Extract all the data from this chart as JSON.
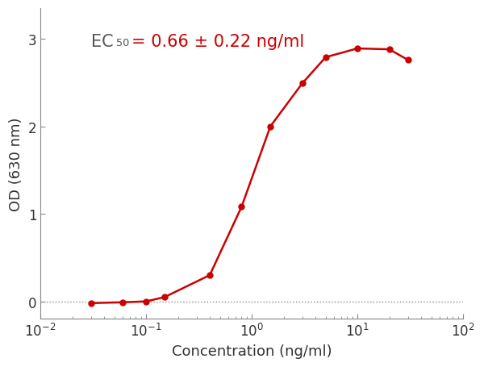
{
  "x": [
    0.03,
    0.06,
    0.1,
    0.15,
    0.4,
    0.8,
    1.5,
    3.0,
    5.0,
    10.0,
    20.0,
    30.0
  ],
  "y": [
    -0.02,
    -0.01,
    0.0,
    0.05,
    0.3,
    1.08,
    2.0,
    2.49,
    2.79,
    2.89,
    2.88,
    2.76
  ],
  "line_color": "#cc0000",
  "marker_color": "#cc0000",
  "dashed_y": 0.0,
  "xlabel": "Concentration (ng/ml)",
  "ylabel": "OD (630 nm)",
  "xlim": [
    0.01,
    100
  ],
  "ylim": [
    -0.2,
    3.35
  ],
  "yticks": [
    0,
    1,
    2,
    3
  ],
  "annotation_fontsize": 15,
  "annotation_color": "#555555",
  "annotation_value_color": "#cc0000",
  "background_color": "#ffffff",
  "fig_bg_color": "#ffffff",
  "spine_color": "#888888",
  "tick_label_color": "#333333",
  "xlabel_fontsize": 13,
  "ylabel_fontsize": 13
}
